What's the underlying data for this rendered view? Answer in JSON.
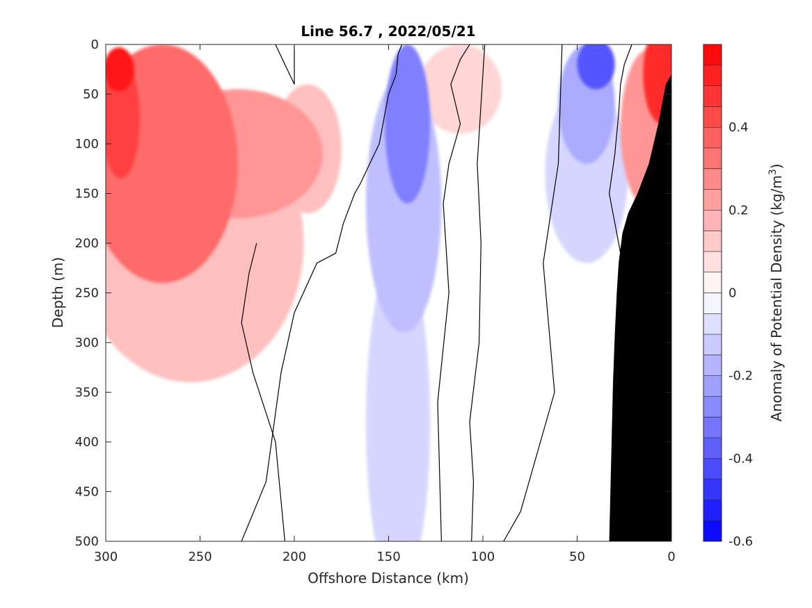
{
  "chart_data": {
    "type": "contour",
    "title": "Line 56.7 , 2022/05/21",
    "xlabel": "Offshore Distance (km)",
    "ylabel": "Depth (m)",
    "xlim": [
      300,
      0
    ],
    "ylim": [
      0,
      500
    ],
    "x_reversed": true,
    "y_reversed": true,
    "xticks": [
      300,
      250,
      200,
      150,
      100,
      50,
      0
    ],
    "yticks": [
      0,
      50,
      100,
      150,
      200,
      250,
      300,
      350,
      400,
      450,
      500
    ],
    "colorbar": {
      "label": "Anomaly of Potential Density (kg/m³)",
      "label_parts": {
        "main": "Anomaly of Potential Density (kg/m",
        "sup": "3",
        "tail": ")"
      },
      "range": [
        -0.6,
        0.6
      ],
      "step": 0.05,
      "ticks": [
        0.4,
        0.2,
        0,
        -0.2,
        -0.4,
        -0.6
      ],
      "colormap": "blue-white-red",
      "colors": {
        "negative": "#0000ff",
        "zero": "#ffffff",
        "positive": "#ff0000"
      }
    },
    "zero_contour": true,
    "fields": [
      {
        "sign": "positive",
        "level": 0.55,
        "x": 293,
        "y": 25,
        "rx": 8,
        "ry": 22
      },
      {
        "sign": "positive",
        "level": 0.45,
        "x": 292,
        "y": 75,
        "rx": 10,
        "ry": 60
      },
      {
        "sign": "positive",
        "level": 0.35,
        "x": 270,
        "y": 120,
        "rx": 40,
        "ry": 120
      },
      {
        "sign": "positive",
        "level": 0.25,
        "x": 230,
        "y": 110,
        "rx": 45,
        "ry": 65
      },
      {
        "sign": "positive",
        "level": 0.15,
        "x": 255,
        "y": 200,
        "rx": 60,
        "ry": 140
      },
      {
        "sign": "positive",
        "level": 0.15,
        "x": 193,
        "y": 105,
        "rx": 18,
        "ry": 65
      },
      {
        "sign": "positive",
        "level": 0.1,
        "x": 112,
        "y": 45,
        "rx": 22,
        "ry": 45
      },
      {
        "sign": "positive",
        "level": 0.5,
        "x": 5,
        "y": 30,
        "rx": 10,
        "ry": 50
      },
      {
        "sign": "positive",
        "level": 0.25,
        "x": 12,
        "y": 85,
        "rx": 15,
        "ry": 80
      },
      {
        "sign": "negative",
        "level": -0.3,
        "x": 140,
        "y": 80,
        "rx": 12,
        "ry": 80
      },
      {
        "sign": "negative",
        "level": -0.15,
        "x": 142,
        "y": 160,
        "rx": 20,
        "ry": 130
      },
      {
        "sign": "negative",
        "level": -0.1,
        "x": 145,
        "y": 380,
        "rx": 17,
        "ry": 170
      },
      {
        "sign": "negative",
        "level": -0.4,
        "x": 40,
        "y": 20,
        "rx": 10,
        "ry": 25
      },
      {
        "sign": "negative",
        "level": -0.2,
        "x": 45,
        "y": 60,
        "rx": 15,
        "ry": 60
      },
      {
        "sign": "negative",
        "level": -0.1,
        "x": 45,
        "y": 130,
        "rx": 22,
        "ry": 90
      }
    ],
    "zero_contour_lines": [
      {
        "x": [
          228,
          215,
          207,
          200,
          188,
          178,
          174,
          168,
          165,
          160,
          155,
          153,
          150,
          146,
          145,
          143
        ],
        "y": [
          500,
          440,
          330,
          270,
          220,
          210,
          180,
          150,
          140,
          120,
          100,
          80,
          50,
          30,
          10,
          0
        ]
      },
      {
        "x": [
          205,
          210,
          222,
          228,
          224,
          220
        ],
        "y": [
          500,
          400,
          330,
          280,
          230,
          200
        ]
      },
      {
        "x": [
          122,
          124,
          118,
          121,
          118,
          112,
          117,
          112,
          107
        ],
        "y": [
          500,
          360,
          250,
          160,
          120,
          80,
          40,
          15,
          0
        ]
      },
      {
        "x": [
          106,
          105,
          107,
          102,
          101,
          103,
          99
        ],
        "y": [
          500,
          440,
          380,
          300,
          200,
          120,
          0
        ]
      },
      {
        "x": [
          89,
          80,
          62,
          68,
          60,
          58
        ],
        "y": [
          500,
          470,
          350,
          220,
          120,
          0
        ]
      },
      {
        "x": [
          28,
          27,
          30,
          33,
          30,
          28,
          27,
          25,
          21
        ],
        "y": [
          250,
          210,
          180,
          150,
          110,
          70,
          40,
          20,
          0
        ]
      },
      {
        "x": [
          210,
          205,
          200,
          200
        ],
        "y": [
          0,
          20,
          40,
          0
        ]
      }
    ],
    "bathymetry": {
      "x": [
        33,
        32,
        31,
        30,
        29,
        28,
        26,
        23,
        18,
        12,
        7,
        3,
        0
      ],
      "y": [
        500,
        420,
        340,
        290,
        250,
        220,
        190,
        170,
        150,
        120,
        80,
        40,
        30
      ]
    }
  }
}
